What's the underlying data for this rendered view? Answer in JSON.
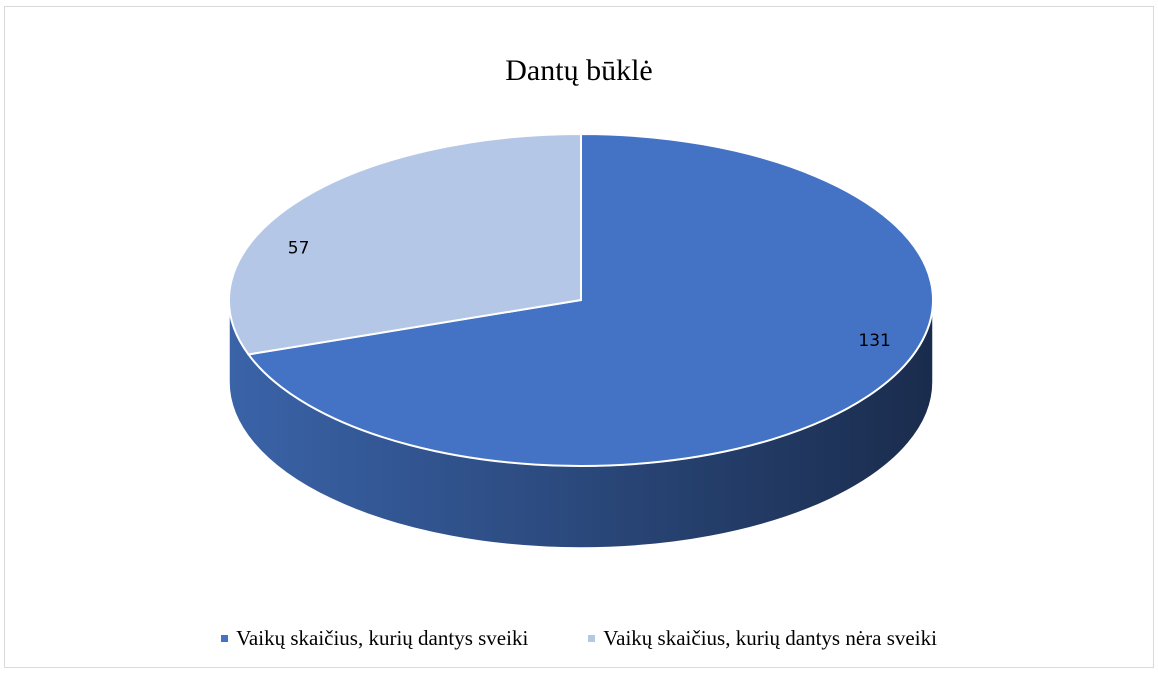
{
  "chart_data": {
    "type": "pie",
    "title": "Dantų būklė",
    "categories": [
      "Vaikų skaičius, kurių dantys sveiki",
      "Vaikų skaičius, kurių dantys nėra sveiki"
    ],
    "values": [
      131,
      57
    ],
    "colors": [
      "#4472c4",
      "#b4c7e7"
    ],
    "data_labels": [
      "131",
      "57"
    ],
    "legend_position": "bottom",
    "style": "3d"
  }
}
